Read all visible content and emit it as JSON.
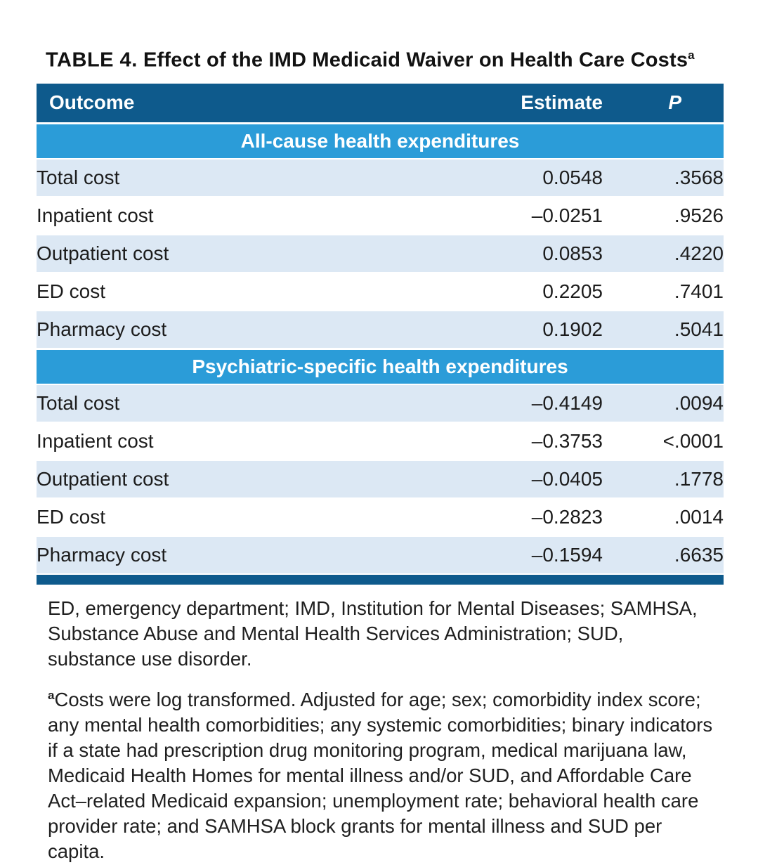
{
  "table": {
    "title_label": "TABLE 4.",
    "title_text": " Effect of the IMD Medicaid Waiver on Health Care Costs",
    "title_footnote_marker": "a",
    "columns": [
      "Outcome",
      "Estimate",
      "P"
    ],
    "sections": [
      {
        "header": "All-cause health expenditures",
        "rows": [
          {
            "outcome": "Total cost",
            "estimate": "0.0548",
            "p": ".3568"
          },
          {
            "outcome": "Inpatient cost",
            "estimate": "–0.0251",
            "p": ".9526"
          },
          {
            "outcome": "Outpatient cost",
            "estimate": "0.0853",
            "p": ".4220"
          },
          {
            "outcome": "ED cost",
            "estimate": "0.2205",
            "p": ".7401"
          },
          {
            "outcome": "Pharmacy cost",
            "estimate": "0.1902",
            "p": ".5041"
          }
        ]
      },
      {
        "header": "Psychiatric-specific health expenditures",
        "rows": [
          {
            "outcome": "Total cost",
            "estimate": "–0.4149",
            "p": ".0094"
          },
          {
            "outcome": "Inpatient cost",
            "estimate": "–0.3753",
            "p": "<.0001"
          },
          {
            "outcome": "Outpatient cost",
            "estimate": "–0.0405",
            "p": ".1778"
          },
          {
            "outcome": "ED cost",
            "estimate": "–0.2823",
            "p": ".0014"
          },
          {
            "outcome": "Pharmacy cost",
            "estimate": "–0.1594",
            "p": ".6635"
          }
        ]
      }
    ],
    "footnotes": {
      "abbreviations": "ED, emergency department; IMD, Institution for Mental Diseases; SAMHSA, Substance Abuse and Mental Health Services Administration; SUD, substance use disorder.",
      "note_marker": "a",
      "note_text": "Costs were log transformed. Adjusted for age; sex; comorbidity index score; any mental health comorbidities; any systemic comorbidities; binary indicators if a state had prescription drug monitoring program, medical marijuana law, Medicaid Health Homes for mental illness and/or SUD, and Affordable Care Act–related Medicaid expansion; unemployment rate; behavioral health care provider rate; and SAMHSA block grants for mental illness and SUD per capita."
    }
  },
  "colors": {
    "header_bg": "#0e5a8c",
    "section_bg": "#2b9cd8",
    "row_alt_bg": "#dce8f4",
    "bottom_bar": "#0e5a8c",
    "text": "#1c1c1c"
  }
}
